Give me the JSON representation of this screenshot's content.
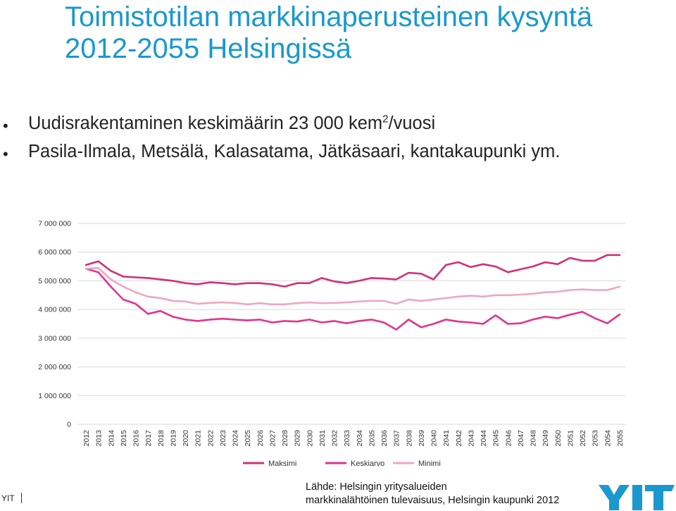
{
  "title": "Toimistotilan markkinaperusteinen kysyntä 2012-2055 Helsingissä",
  "bullets": [
    {
      "pre": "Uudisrakentaminen keskimäärin 23 000 kem",
      "sup": "2",
      "post": "/vuosi"
    },
    {
      "pre": "Pasila-Ilmala, Metsälä, Kalasatama, Jätkäsaari, kantakaupunki ym.",
      "sup": "",
      "post": ""
    }
  ],
  "footer": {
    "left_text": "YIT"
  },
  "source": {
    "line1": "Lähde: Helsingin yritysalueiden",
    "line2": "markkinalähtöinen tulevaisuus, Helsingin kaupunki 2012"
  },
  "logo": {
    "text": "YIT",
    "color": "#1a98cf"
  },
  "chart_data": {
    "type": "line",
    "title": "",
    "xlabel": "",
    "ylabel": "",
    "ylim": [
      0,
      7000000
    ],
    "yticks": [
      0,
      1000000,
      2000000,
      3000000,
      4000000,
      5000000,
      6000000,
      7000000
    ],
    "ytick_labels": [
      "0",
      "1 000 000",
      "2 000 000",
      "3 000 000",
      "4 000 000",
      "5 000 000",
      "6 000 000",
      "7 000 000"
    ],
    "grid": true,
    "legend_position": "bottom",
    "categories": [
      "2012",
      "2013",
      "2014",
      "2015",
      "2016",
      "2017",
      "2018",
      "2019",
      "2020",
      "2021",
      "2022",
      "2023",
      "2024",
      "2025",
      "2026",
      "2027",
      "2028",
      "2029",
      "2030",
      "2031",
      "2032",
      "2033",
      "2034",
      "2035",
      "2036",
      "2037",
      "2038",
      "2039",
      "2040",
      "2041",
      "2042",
      "2043",
      "2044",
      "2045",
      "2046",
      "2047",
      "2048",
      "2049",
      "2050",
      "2051",
      "2052",
      "2053",
      "2054",
      "2055"
    ],
    "series": [
      {
        "name": "Maksimi",
        "color": "#d0307a",
        "values": [
          5550000,
          5680000,
          5350000,
          5150000,
          5120000,
          5100000,
          5050000,
          5000000,
          4920000,
          4880000,
          4950000,
          4920000,
          4880000,
          4920000,
          4920000,
          4880000,
          4800000,
          4920000,
          4920000,
          5100000,
          4980000,
          4920000,
          5000000,
          5100000,
          5080000,
          5050000,
          5280000,
          5250000,
          5050000,
          5550000,
          5650000,
          5480000,
          5580000,
          5500000,
          5300000,
          5400000,
          5500000,
          5650000,
          5580000,
          5800000,
          5700000,
          5700000,
          5900000,
          5900000
        ]
      },
      {
        "name": "Keskiarvo",
        "color": "#e0348e",
        "values": [
          5420000,
          5300000,
          4800000,
          4350000,
          4200000,
          3850000,
          3950000,
          3750000,
          3650000,
          3600000,
          3650000,
          3680000,
          3650000,
          3620000,
          3650000,
          3550000,
          3600000,
          3580000,
          3650000,
          3550000,
          3600000,
          3520000,
          3600000,
          3650000,
          3550000,
          3300000,
          3650000,
          3380000,
          3500000,
          3650000,
          3580000,
          3550000,
          3500000,
          3800000,
          3500000,
          3520000,
          3650000,
          3750000,
          3700000,
          3820000,
          3920000,
          3700000,
          3520000,
          3830000
        ]
      },
      {
        "name": "Minimi",
        "color": "#f0a5c3",
        "values": [
          5420000,
          5450000,
          5050000,
          4800000,
          4600000,
          4450000,
          4400000,
          4300000,
          4280000,
          4200000,
          4230000,
          4250000,
          4230000,
          4180000,
          4220000,
          4180000,
          4180000,
          4220000,
          4250000,
          4220000,
          4230000,
          4250000,
          4280000,
          4300000,
          4300000,
          4200000,
          4350000,
          4300000,
          4350000,
          4400000,
          4450000,
          4480000,
          4450000,
          4500000,
          4500000,
          4520000,
          4550000,
          4600000,
          4620000,
          4680000,
          4700000,
          4680000,
          4680000,
          4800000
        ]
      }
    ]
  }
}
